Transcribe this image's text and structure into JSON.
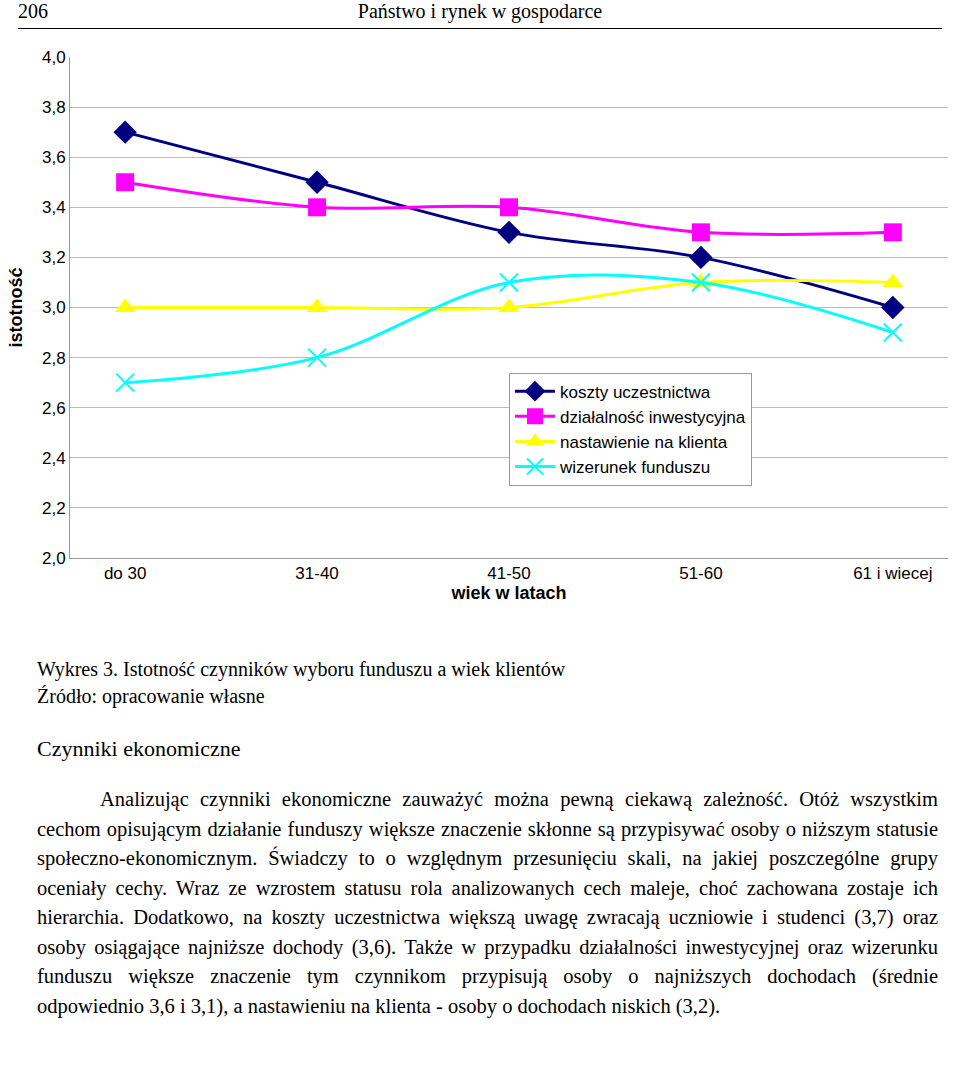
{
  "header": {
    "page_number": "206",
    "title": "Państwo i rynek w gospodarce"
  },
  "chart_data": {
    "type": "line",
    "x_label": "wiek w latach",
    "y_label": "istotność",
    "categories": [
      "do 30",
      "31-40",
      "41-50",
      "51-60",
      "61 i wiecej"
    ],
    "series": [
      {
        "name": "koszty uczestnictwa",
        "color": "#000080",
        "marker": "diamond",
        "values": [
          3.7,
          3.5,
          3.3,
          3.2,
          3.0
        ]
      },
      {
        "name": "działalność inwestycyjna",
        "color": "#ff00ff",
        "marker": "square",
        "values": [
          3.5,
          3.4,
          3.4,
          3.3,
          3.3
        ]
      },
      {
        "name": "nastawienie na klienta",
        "color": "#ffff00",
        "marker": "triangle-up",
        "values": [
          3.0,
          3.0,
          3.0,
          3.1,
          3.1
        ]
      },
      {
        "name": "wizerunek funduszu",
        "color": "#00ffff",
        "marker": "x",
        "values": [
          2.7,
          2.8,
          3.1,
          3.1,
          2.9
        ]
      }
    ],
    "line_style": "smooth",
    "ylim": [
      2.0,
      4.0
    ],
    "yticks": [
      {
        "value": 2.0,
        "label": "2,0"
      },
      {
        "value": 2.2,
        "label": "2,2"
      },
      {
        "value": 2.4,
        "label": "2,4"
      },
      {
        "value": 2.6,
        "label": "2,6"
      },
      {
        "value": 2.8,
        "label": "2,8"
      },
      {
        "value": 3.0,
        "label": "3,0"
      },
      {
        "value": 3.2,
        "label": "3,2"
      },
      {
        "value": 3.4,
        "label": "3,4"
      },
      {
        "value": 3.6,
        "label": "3,6"
      },
      {
        "value": 3.8,
        "label": "3,8"
      },
      {
        "value": 4.0,
        "label": "4,0"
      }
    ],
    "grid": true,
    "legend": "lower right"
  },
  "caption": [
    "Wykres 3. Istotność czynników wyboru funduszu a wiek klientów",
    "Źródło: opracowanie własne"
  ],
  "section": "Czynniki ekonomiczne",
  "paragraph": "Analizując czynniki ekonomiczne zauważyć można pewną ciekawą zależność. Otóż wszystkim cechom opisującym działanie funduszy większe znaczenie skłonne są przypisywać osoby o niższym statusie społeczno-ekonomicznym. Świadczy to o względnym przesunięciu skali, na jakiej poszczególne grupy oceniały cechy. Wraz ze wzrostem statusu rola analizowanych cech maleje, choć zachowana zostaje ich hierarchia. Dodatkowo, na koszty uczestnictwa większą uwagę zwracają uczniowie i studenci (3,7) oraz osoby osiągające najniższe dochody (3,6). Także w przypadku działalności inwestycyjnej oraz wizerunku funduszu większe znaczenie tym czynnikom przypisują osoby o najniższych dochodach (średnie odpowiednio 3,6 i 3,1), a nastawieniu na klienta - osoby o dochodach niskich (3,2)."
}
